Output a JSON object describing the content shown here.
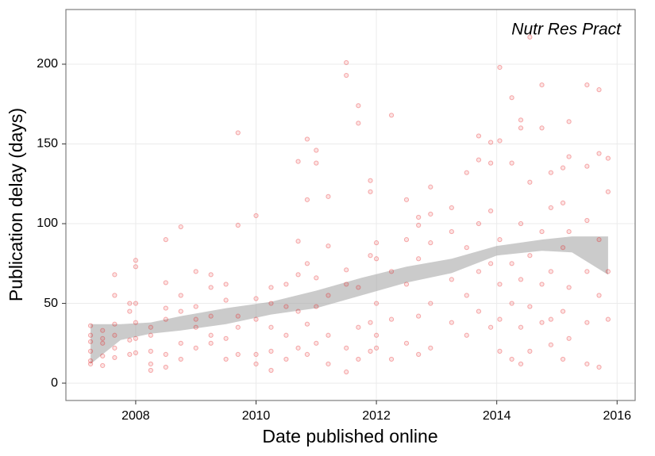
{
  "chart_data": {
    "type": "scatter",
    "annotation": "Nutr Res Pract",
    "x_label": "Date published online",
    "y_label": "Publication delay (days)",
    "color": "#e41a1c",
    "band_color": "#a9a9a9",
    "grid": true,
    "xlim": [
      2006.84,
      2016.3
    ],
    "ylim": [
      -10.9,
      234.3
    ],
    "xticks": [
      2008,
      2010,
      2012,
      2014,
      2016
    ],
    "yticks": [
      0,
      50,
      100,
      150,
      200
    ],
    "x": [
      2007.25,
      2007.25,
      2007.25,
      2007.25,
      2007.25,
      2007.25,
      2007.45,
      2007.45,
      2007.45,
      2007.45,
      2007.45,
      2007.65,
      2007.65,
      2007.65,
      2007.65,
      2007.65,
      2007.65,
      2007.9,
      2007.9,
      2007.9,
      2007.9,
      2008.0,
      2008.0,
      2008.0,
      2008.0,
      2008.0,
      2008.0,
      2008.25,
      2008.25,
      2008.25,
      2008.25,
      2008.25,
      2008.5,
      2008.5,
      2008.5,
      2008.5,
      2008.5,
      2008.5,
      2008.75,
      2008.75,
      2008.75,
      2008.75,
      2008.75,
      2009.0,
      2009.0,
      2009.0,
      2009.0,
      2009.0,
      2009.25,
      2009.25,
      2009.25,
      2009.25,
      2009.25,
      2009.5,
      2009.5,
      2009.5,
      2009.5,
      2009.7,
      2009.7,
      2009.7,
      2009.7,
      2009.7,
      2010.0,
      2010.0,
      2010.0,
      2010.0,
      2010.0,
      2010.25,
      2010.25,
      2010.25,
      2010.25,
      2010.25,
      2010.5,
      2010.5,
      2010.5,
      2010.5,
      2010.7,
      2010.7,
      2010.7,
      2010.7,
      2010.7,
      2010.85,
      2010.85,
      2010.85,
      2010.85,
      2010.85,
      2011.0,
      2011.0,
      2011.0,
      2011.0,
      2011.0,
      2011.2,
      2011.2,
      2011.2,
      2011.2,
      2011.2,
      2011.5,
      2011.5,
      2011.5,
      2011.5,
      2011.5,
      2011.5,
      2011.7,
      2011.7,
      2011.7,
      2011.7,
      2011.7,
      2011.9,
      2011.9,
      2011.9,
      2011.9,
      2011.9,
      2012.0,
      2012.0,
      2012.0,
      2012.0,
      2012.0,
      2012.25,
      2012.25,
      2012.25,
      2012.25,
      2012.5,
      2012.5,
      2012.5,
      2012.5,
      2012.7,
      2012.7,
      2012.7,
      2012.7,
      2012.7,
      2012.9,
      2012.9,
      2012.9,
      2012.9,
      2012.9,
      2013.25,
      2013.25,
      2013.25,
      2013.25,
      2013.5,
      2013.5,
      2013.5,
      2013.5,
      2013.7,
      2013.7,
      2013.7,
      2013.7,
      2013.7,
      2013.9,
      2013.9,
      2013.9,
      2013.9,
      2013.9,
      2014.05,
      2014.05,
      2014.05,
      2014.05,
      2014.05,
      2014.05,
      2014.25,
      2014.25,
      2014.25,
      2014.25,
      2014.25,
      2014.4,
      2014.4,
      2014.4,
      2014.4,
      2014.4,
      2014.4,
      2014.55,
      2014.55,
      2014.55,
      2014.55,
      2014.55,
      2014.75,
      2014.75,
      2014.75,
      2014.75,
      2014.75,
      2014.9,
      2014.9,
      2014.9,
      2014.9,
      2014.9,
      2015.1,
      2015.1,
      2015.1,
      2015.1,
      2015.1,
      2015.2,
      2015.2,
      2015.2,
      2015.2,
      2015.2,
      2015.5,
      2015.5,
      2015.5,
      2015.5,
      2015.5,
      2015.5,
      2015.7,
      2015.7,
      2015.7,
      2015.7,
      2015.7,
      2015.85,
      2015.85,
      2015.85,
      2015.85
    ],
    "values": [
      12,
      14,
      20,
      26,
      30,
      36,
      11,
      17,
      25,
      28,
      33,
      16,
      22,
      30,
      37,
      55,
      68,
      18,
      27,
      45,
      50,
      19,
      28,
      38,
      50,
      73,
      77,
      8,
      12,
      20,
      30,
      35,
      10,
      18,
      40,
      47,
      63,
      90,
      15,
      25,
      45,
      55,
      98,
      22,
      35,
      40,
      48,
      70,
      25,
      30,
      42,
      60,
      68,
      15,
      28,
      52,
      62,
      18,
      35,
      42,
      99,
      157,
      12,
      18,
      40,
      53,
      105,
      8,
      20,
      35,
      50,
      60,
      15,
      30,
      48,
      62,
      22,
      45,
      68,
      89,
      139,
      18,
      37,
      75,
      115,
      153,
      25,
      48,
      66,
      138,
      146,
      12,
      30,
      55,
      86,
      117,
      7,
      22,
      62,
      71,
      193,
      201,
      15,
      35,
      60,
      163,
      174,
      20,
      38,
      80,
      120,
      127,
      22,
      30,
      50,
      78,
      88,
      15,
      40,
      70,
      168,
      25,
      62,
      90,
      115,
      18,
      42,
      78,
      99,
      104,
      22,
      50,
      88,
      106,
      123,
      38,
      65,
      95,
      110,
      30,
      55,
      85,
      132,
      45,
      70,
      100,
      140,
      155,
      35,
      75,
      108,
      138,
      151,
      20,
      40,
      62,
      90,
      152,
      198,
      15,
      50,
      75,
      138,
      179,
      12,
      35,
      65,
      100,
      160,
      165,
      20,
      48,
      80,
      126,
      217,
      38,
      62,
      95,
      160,
      187,
      24,
      40,
      70,
      110,
      132,
      15,
      45,
      85,
      113,
      135,
      28,
      60,
      95,
      142,
      164,
      12,
      38,
      70,
      102,
      136,
      187,
      10,
      55,
      90,
      144,
      184,
      40,
      70,
      120,
      141
    ],
    "band": {
      "x": [
        2007.25,
        2007.75,
        2008.25,
        2008.75,
        2009.5,
        2010.25,
        2011,
        2011.75,
        2012.5,
        2013.25,
        2014,
        2014.75,
        2015.25,
        2015.85
      ],
      "lower": [
        12,
        27,
        31,
        33,
        37,
        43,
        47,
        55,
        63,
        69,
        80,
        83,
        82,
        68
      ],
      "upper": [
        37,
        37,
        38,
        42,
        47,
        51,
        58,
        66,
        73,
        78,
        86,
        90,
        92,
        92
      ]
    }
  }
}
